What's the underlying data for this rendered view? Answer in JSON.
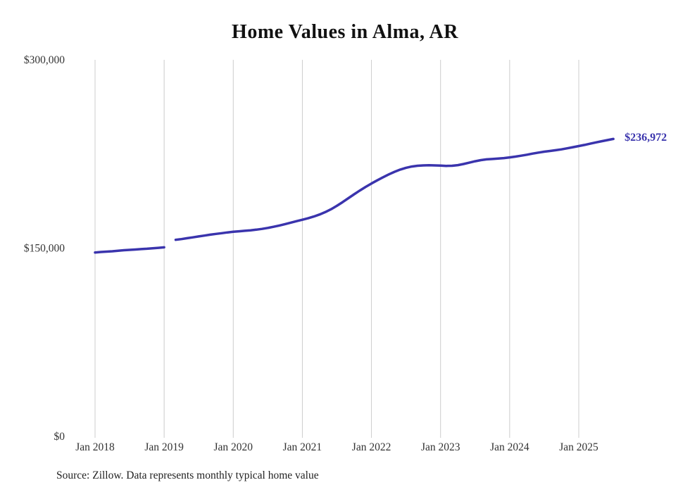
{
  "chart_data": {
    "type": "line",
    "title": "Home Values in Alma, AR",
    "source": "Source: Zillow. Data represents monthly typical home value",
    "end_label": "$236,972",
    "line_color": "#3a34ad",
    "gridline_color": "#cccccc",
    "ylim": [
      0,
      300000
    ],
    "y_ticks": [
      {
        "label": "$0",
        "value": 0
      },
      {
        "label": "$150,000",
        "value": 150000
      },
      {
        "label": "$300,000",
        "value": 300000
      }
    ],
    "x_ticks": [
      {
        "label": "Jan 2018",
        "month_index": 0
      },
      {
        "label": "Jan 2019",
        "month_index": 12
      },
      {
        "label": "Jan 2020",
        "month_index": 24
      },
      {
        "label": "Jan 2021",
        "month_index": 36
      },
      {
        "label": "Jan 2022",
        "month_index": 48
      },
      {
        "label": "Jan 2023",
        "month_index": 60
      },
      {
        "label": "Jan 2024",
        "month_index": 72
      },
      {
        "label": "Jan 2025",
        "month_index": 84
      }
    ],
    "start_month": "2018-01",
    "series": [
      {
        "name": "Typical home value",
        "values": [
          146500,
          146900,
          147200,
          147500,
          147900,
          148300,
          148600,
          148900,
          149200,
          149500,
          149900,
          150200,
          150600,
          null,
          156600,
          157200,
          157900,
          158600,
          159300,
          160000,
          160700,
          161300,
          161900,
          162500,
          163000,
          163400,
          163800,
          164200,
          164700,
          165300,
          166100,
          167000,
          168000,
          169100,
          170300,
          171500,
          172600,
          173800,
          175200,
          176800,
          178700,
          181000,
          183700,
          186700,
          189800,
          192900,
          195900,
          198800,
          201500,
          204000,
          206400,
          208700,
          210800,
          212600,
          214000,
          215000,
          215600,
          215900,
          216000,
          215900,
          215700,
          215500,
          215600,
          216100,
          217000,
          218100,
          219200,
          220100,
          220700,
          221000,
          221300,
          221700,
          222300,
          222900,
          223600,
          224400,
          225300,
          226100,
          226800,
          227400,
          228000,
          228700,
          229500,
          230400,
          231300,
          232200,
          233200,
          234200,
          235200,
          236100,
          236972
        ]
      }
    ],
    "layout_hints": {
      "grid": "vertical-only",
      "legend": "none",
      "last_point_annotated": true
    }
  }
}
